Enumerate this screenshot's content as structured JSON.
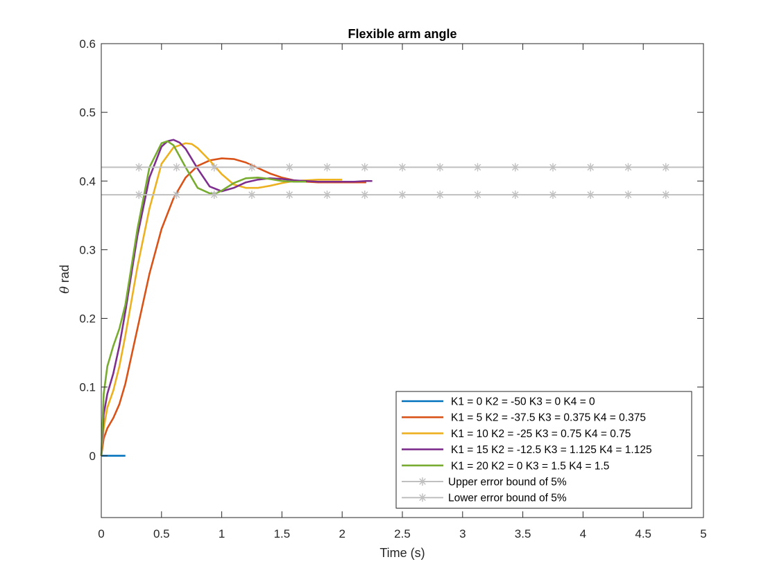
{
  "chart_data": {
    "type": "line",
    "title": "Flexible arm angle",
    "xlabel": "Time (s)",
    "ylabel_symbol": "θ",
    "ylabel_unit": "rad",
    "xlim": [
      0,
      5
    ],
    "ylim": [
      -0.09,
      0.6
    ],
    "xticks": [
      0,
      0.5,
      1,
      1.5,
      2,
      2.5,
      3,
      3.5,
      4,
      4.5,
      5
    ],
    "xtick_labels": [
      "0",
      "0.5",
      "1",
      "1.5",
      "2",
      "2.5",
      "3",
      "3.5",
      "4",
      "4.5",
      "5"
    ],
    "yticks": [
      0,
      0.1,
      0.2,
      0.3,
      0.4,
      0.5,
      0.6
    ],
    "ytick_labels": [
      "0",
      "0.1",
      "0.2",
      "0.3",
      "0.4",
      "0.5",
      "0.6"
    ],
    "grid": false,
    "legend_position": "bottom-right",
    "series": [
      {
        "name": "K1 = 0 K2 = -50 K3 = 0 K4 = 0",
        "color": "#0072BD",
        "marker": "none",
        "x": [
          0,
          0.2
        ],
        "y": [
          0,
          0
        ]
      },
      {
        "name": "K1 = 5 K2 = -37.5 K3 = 0.375 K4 = 0.375",
        "color": "#D95319",
        "marker": "none",
        "x": [
          0,
          0.02,
          0.05,
          0.1,
          0.15,
          0.2,
          0.3,
          0.4,
          0.5,
          0.6,
          0.7,
          0.8,
          0.9,
          1.0,
          1.1,
          1.2,
          1.3,
          1.4,
          1.5,
          1.6,
          1.7,
          1.8,
          1.9,
          2.0,
          2.1,
          2.2
        ],
        "y": [
          0,
          0.025,
          0.04,
          0.055,
          0.075,
          0.105,
          0.185,
          0.265,
          0.33,
          0.375,
          0.405,
          0.422,
          0.43,
          0.433,
          0.432,
          0.427,
          0.419,
          0.411,
          0.405,
          0.401,
          0.399,
          0.398,
          0.398,
          0.398,
          0.398,
          0.398
        ]
      },
      {
        "name": "K1 = 10 K2 = -25 K3 = 0.75 K4 = 0.75",
        "color": "#EDB120",
        "marker": "none",
        "x": [
          0,
          0.02,
          0.05,
          0.1,
          0.15,
          0.2,
          0.3,
          0.4,
          0.5,
          0.6,
          0.7,
          0.75,
          0.8,
          0.9,
          1.0,
          1.1,
          1.2,
          1.3,
          1.4,
          1.5,
          1.6,
          1.7,
          1.8,
          1.9,
          2.0
        ],
        "y": [
          0,
          0.04,
          0.07,
          0.095,
          0.13,
          0.175,
          0.275,
          0.36,
          0.425,
          0.449,
          0.455,
          0.454,
          0.448,
          0.43,
          0.41,
          0.395,
          0.39,
          0.39,
          0.393,
          0.397,
          0.4,
          0.401,
          0.402,
          0.402,
          0.402
        ]
      },
      {
        "name": "K1 = 15 K2 = -12.5 K3 = 1.125 K4 = 1.125",
        "color": "#7E2F8E",
        "marker": "none",
        "x": [
          0,
          0.02,
          0.05,
          0.1,
          0.15,
          0.2,
          0.3,
          0.4,
          0.5,
          0.55,
          0.6,
          0.65,
          0.7,
          0.8,
          0.9,
          1.0,
          1.1,
          1.2,
          1.3,
          1.4,
          1.5,
          1.6,
          1.7,
          1.8,
          1.9,
          2.0,
          2.1,
          2.2,
          2.25
        ],
        "y": [
          0,
          0.06,
          0.09,
          0.12,
          0.16,
          0.21,
          0.32,
          0.405,
          0.45,
          0.458,
          0.46,
          0.456,
          0.447,
          0.418,
          0.392,
          0.385,
          0.39,
          0.398,
          0.402,
          0.404,
          0.403,
          0.401,
          0.4,
          0.399,
          0.399,
          0.399,
          0.399,
          0.4,
          0.4
        ]
      },
      {
        "name": "K1 = 20 K2 = 0 K3 = 1.5 K4 = 1.5",
        "color": "#77AC30",
        "marker": "none",
        "x": [
          0,
          0.02,
          0.05,
          0.1,
          0.15,
          0.2,
          0.3,
          0.4,
          0.5,
          0.55,
          0.6,
          0.7,
          0.8,
          0.9,
          0.95,
          1.0,
          1.1,
          1.2,
          1.3,
          1.4,
          1.5,
          1.6,
          1.7
        ],
        "y": [
          0,
          0.09,
          0.13,
          0.16,
          0.185,
          0.22,
          0.33,
          0.42,
          0.455,
          0.458,
          0.452,
          0.42,
          0.39,
          0.382,
          0.382,
          0.386,
          0.397,
          0.404,
          0.405,
          0.403,
          0.4,
          0.399,
          0.399
        ]
      },
      {
        "name": "Upper error bound of 5%",
        "color": "#BFBFBF",
        "marker": "asterisk",
        "x": [
          0,
          0.3125,
          0.625,
          0.9375,
          1.25,
          1.5625,
          1.875,
          2.1875,
          2.5,
          2.8125,
          3.125,
          3.4375,
          3.75,
          4.0625,
          4.375,
          4.6875,
          5
        ],
        "y": [
          0.42,
          0.42,
          0.42,
          0.42,
          0.42,
          0.42,
          0.42,
          0.42,
          0.42,
          0.42,
          0.42,
          0.42,
          0.42,
          0.42,
          0.42,
          0.42,
          0.42
        ]
      },
      {
        "name": "Lower error bound of 5%",
        "color": "#BFBFBF",
        "marker": "asterisk",
        "x": [
          0,
          0.3125,
          0.625,
          0.9375,
          1.25,
          1.5625,
          1.875,
          2.1875,
          2.5,
          2.8125,
          3.125,
          3.4375,
          3.75,
          4.0625,
          4.375,
          4.6875,
          5
        ],
        "y": [
          0.38,
          0.38,
          0.38,
          0.38,
          0.38,
          0.38,
          0.38,
          0.38,
          0.38,
          0.38,
          0.38,
          0.38,
          0.38,
          0.38,
          0.38,
          0.38,
          0.38
        ]
      }
    ]
  }
}
